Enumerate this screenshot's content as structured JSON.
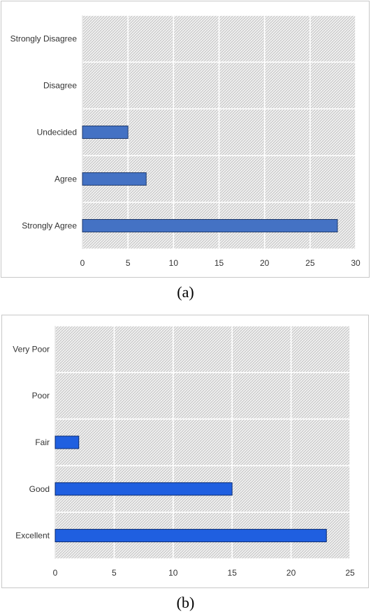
{
  "chart_data": [
    {
      "type": "bar",
      "orientation": "horizontal",
      "categories": [
        "Strongly Disagree",
        "Disagree",
        "Undecided",
        "Agree",
        "Strongly Agree"
      ],
      "values": [
        0,
        0,
        5,
        7,
        28
      ],
      "xlim": [
        0,
        30
      ],
      "xticks": [
        0,
        5,
        10,
        15,
        20,
        25,
        30
      ],
      "grid": true,
      "bar_color": "#4472c4",
      "bar_edge": "#1f3a6b"
    },
    {
      "type": "bar",
      "orientation": "horizontal",
      "categories": [
        "Very Poor",
        "Poor",
        "Fair",
        "Good",
        "Excellent"
      ],
      "values": [
        0,
        0,
        2,
        15,
        23
      ],
      "xlim": [
        0,
        25
      ],
      "xticks": [
        0,
        5,
        10,
        15,
        20,
        25
      ],
      "grid": true,
      "bar_color": "#1f5fe0",
      "bar_edge": "#0a2a6e"
    }
  ],
  "captions": {
    "a": "(a)",
    "b": "(b)"
  }
}
